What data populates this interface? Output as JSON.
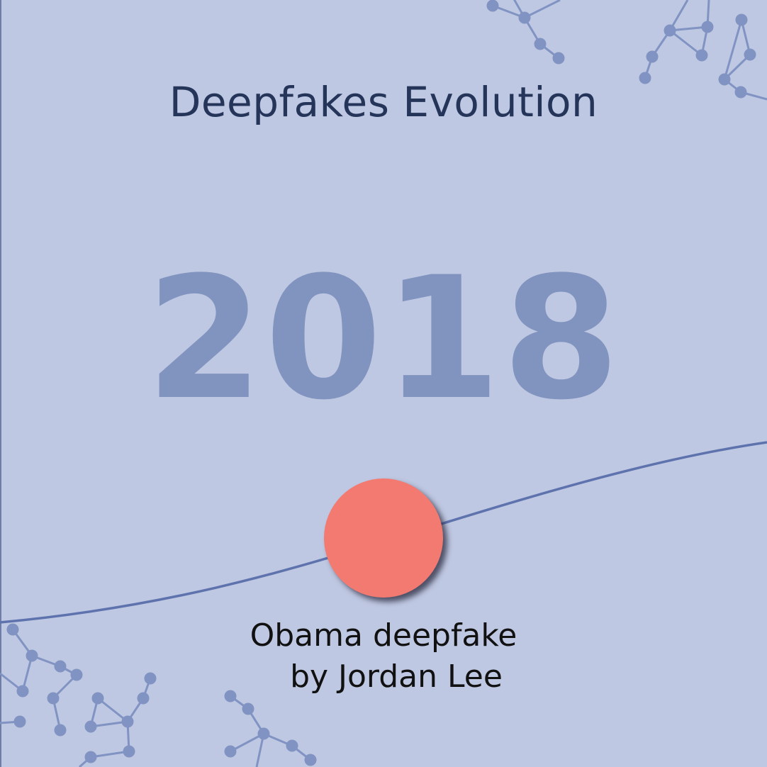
{
  "title": "Deepfakes Evolution",
  "year": "2018",
  "event": {
    "line1": "Obama deepfake",
    "line2": "by Jordan Lee"
  },
  "colors": {
    "background": "#bfc8e2",
    "title": "#25355a",
    "year": "#8193bf",
    "timeline": "#5e73ad",
    "network": "#8093c2",
    "event_dot": "#f27a71",
    "caption": "#111111"
  },
  "icons": [
    "network-graph-decoration"
  ]
}
